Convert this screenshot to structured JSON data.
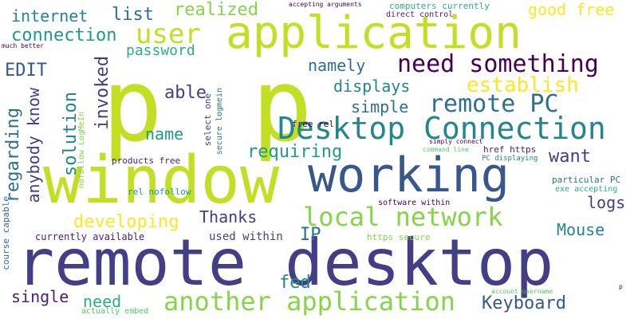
{
  "cloud": {
    "words": {
      "application_big": "application",
      "p_p": "p p",
      "window": "window",
      "working": "working",
      "remote_desktop": "remote desktop",
      "desktop_connection": "Desktop Connection",
      "need_something": "need something",
      "remote_pc": "remote PC",
      "local_network": "local network",
      "another_application": "another application",
      "user": "user",
      "establish": "establish",
      "connection": "connection",
      "internet": "internet",
      "list": "list",
      "realized": "realized",
      "good_free": "good free",
      "password": "password",
      "namely": "namely",
      "able": "able",
      "displays": "displays",
      "simple": "simple",
      "edit": "EDIT",
      "invoked": "invoked",
      "solution": "solution",
      "regarding": "regarding",
      "anybody_know": "anybody know",
      "name": "name",
      "requiring": "requiring",
      "want": "want",
      "thanks": "Thanks",
      "developing": "developing",
      "logs": "logs",
      "mouse": "Mouse",
      "ip": "IP",
      "used_within": "used within",
      "fed": "fed",
      "single": "single",
      "need": "need",
      "keyboard": "Keyboard",
      "currently_available": "currently available",
      "course_capable": "course capable",
      "nofollow_logmein": "nofollow LogMeIn",
      "products_free": "products free",
      "rel_nofollow": "rel nofollow",
      "free_rel": "free rel",
      "select_one": "select one",
      "secure_logmein": "secure logmein",
      "software_within": "software within",
      "https_secure": "https secure",
      "href_https": "href https",
      "pc_displaying": "PC displaying",
      "particular_pc": "particular PC",
      "exe_accepting": "exe accepting",
      "command_line": "command line",
      "simply_connect": "simply connect",
      "computers_currently": "computers currently",
      "accepting_arguments": "accepting arguments",
      "direct_control": "direct control",
      "much_better": "much better",
      "account_username": "account username",
      "actually_embed": "actually embed",
      "p_small": "p"
    }
  }
}
